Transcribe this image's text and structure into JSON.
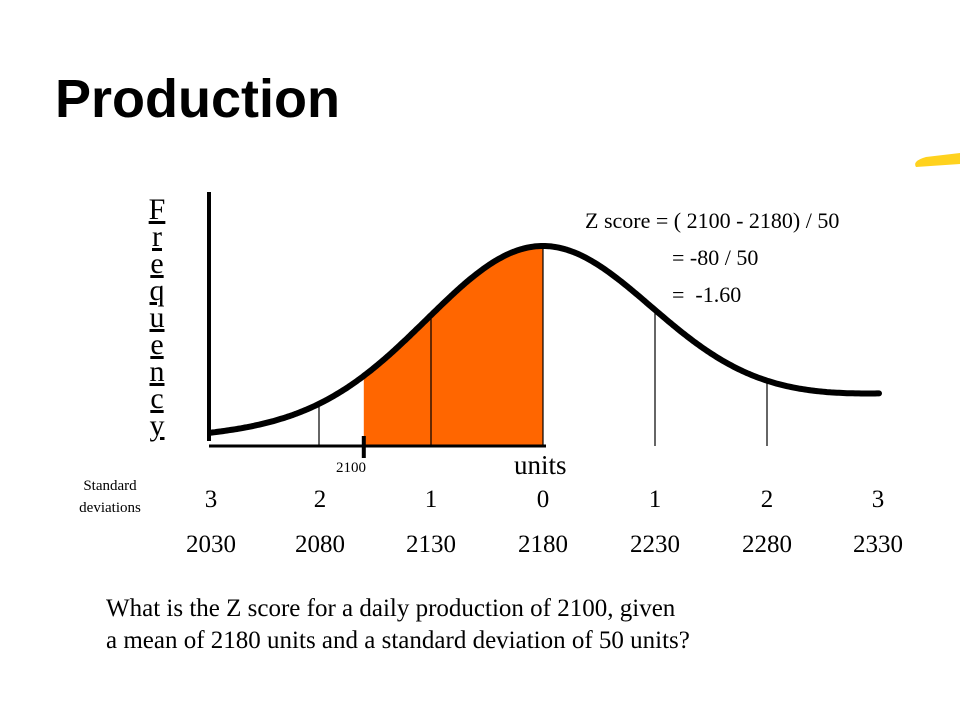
{
  "title": "Production",
  "frequency_label": [
    "F",
    "r",
    "e",
    "q",
    "u",
    "e",
    "n",
    "c",
    "y"
  ],
  "x_axis_label": "units",
  "std_dev_caption": [
    "Standard",
    "deviations"
  ],
  "std_dev_labels": [
    "3",
    "2",
    "1",
    "0",
    "1",
    "2",
    "3"
  ],
  "unit_values": [
    "2030",
    "2080",
    "2130",
    "2180",
    "2230",
    "2280",
    "2330"
  ],
  "marker_label": "2100",
  "distribution": {
    "mean": 2180,
    "std_dev": 50,
    "value": 2100,
    "shaded_from": 2100,
    "shaded_to": 2180
  },
  "equation": {
    "line1": "Z score = ( 2100 - 2180) / 50",
    "line2": "= -80 / 50",
    "line3": "=  -1.60"
  },
  "question": {
    "line1": "What is the Z score for a daily production of 2100, given",
    "line2": "a mean of 2180 units and a standard deviation of 50 units?"
  },
  "colors": {
    "shaded_area": "#ff6600",
    "accent_swoosh": "#ffd21e",
    "curve": "#000000"
  }
}
